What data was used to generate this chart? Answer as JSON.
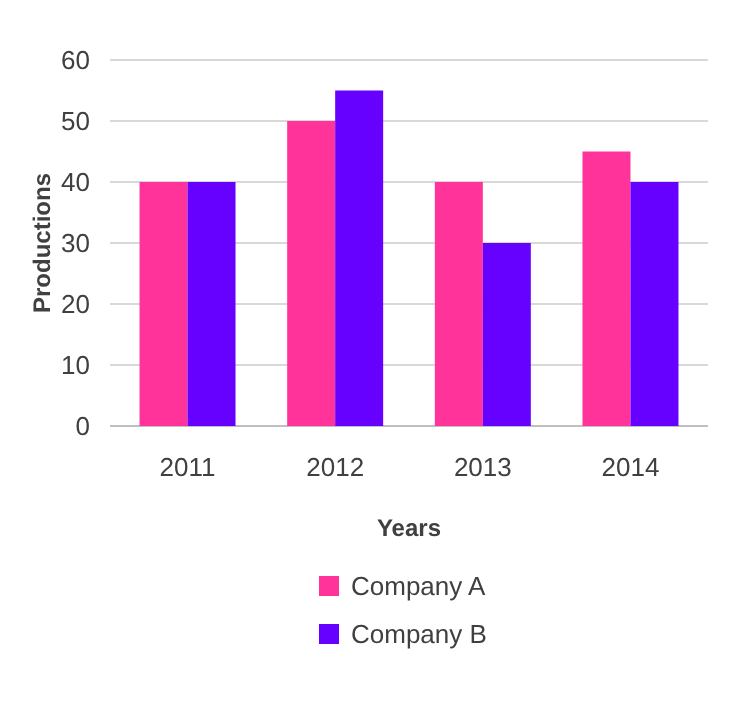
{
  "chart_data": {
    "type": "bar",
    "xlabel": "Years",
    "ylabel": "Productions",
    "categories": [
      "2011",
      "2012",
      "2013",
      "2014"
    ],
    "series": [
      {
        "name": "Company A",
        "color": "#ff3399",
        "values": [
          40,
          50,
          40,
          45
        ]
      },
      {
        "name": "Company B",
        "color": "#6600ff",
        "values": [
          40,
          55,
          30,
          40
        ]
      }
    ],
    "ylim": [
      0,
      60
    ],
    "yticks": [
      0,
      10,
      20,
      30,
      40,
      50,
      60
    ],
    "grid": "y",
    "legend": "bottom"
  }
}
